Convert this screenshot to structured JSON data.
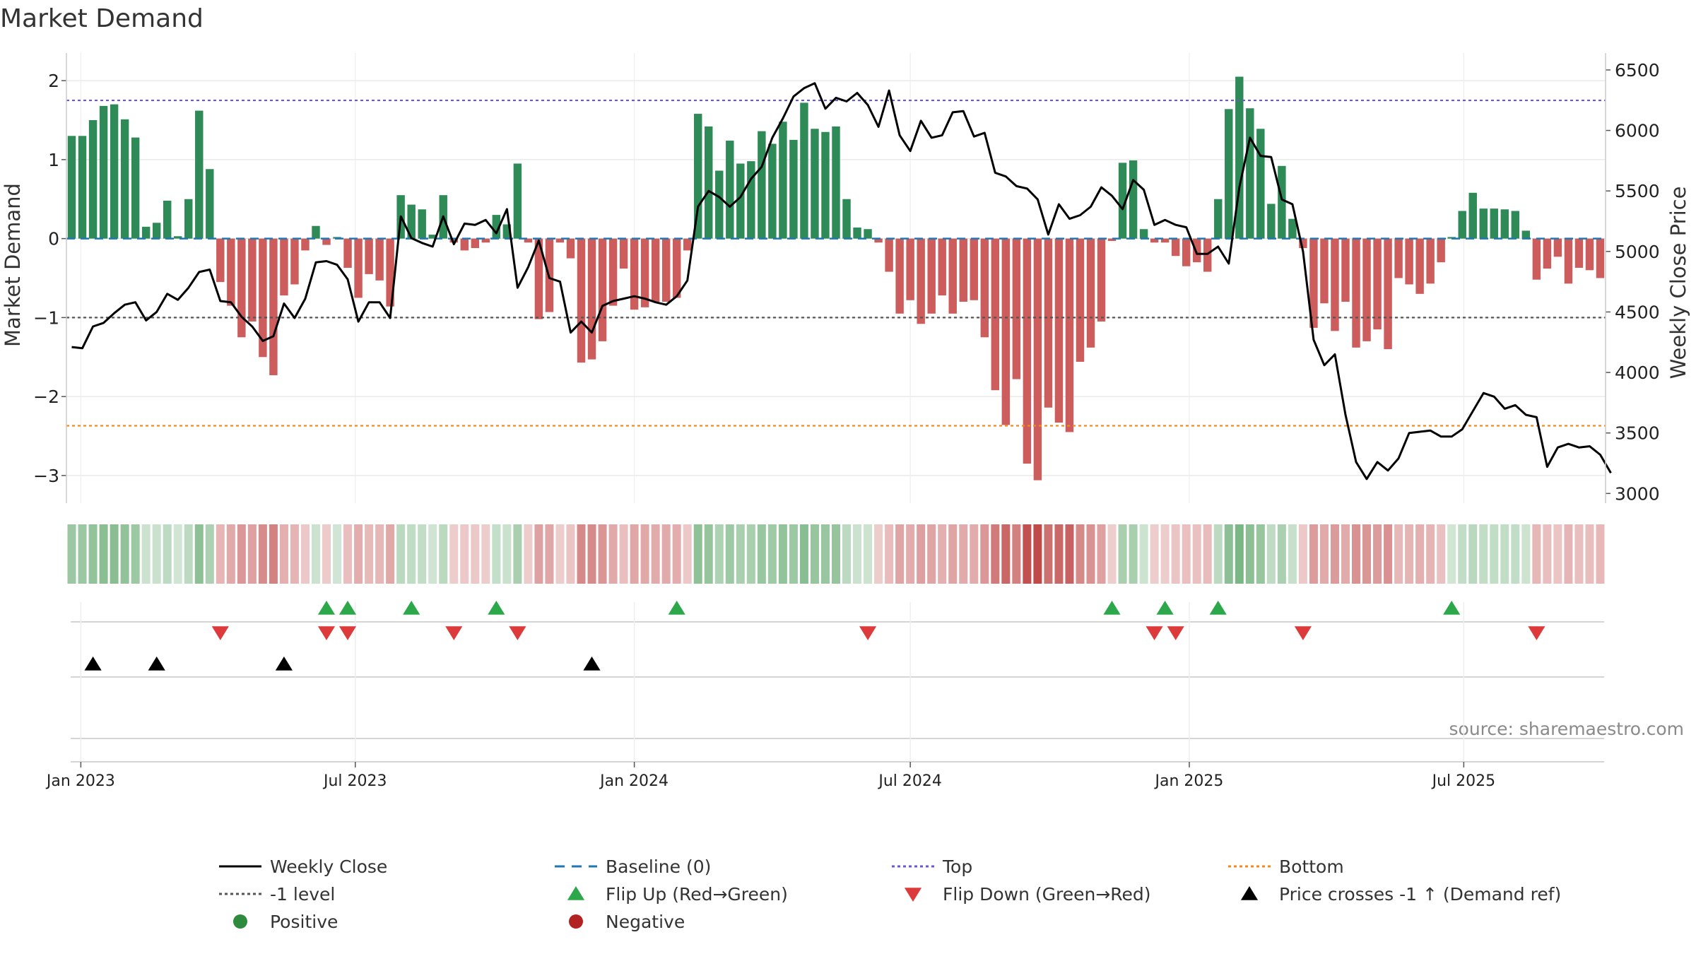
{
  "chart_data": {
    "type": "bar",
    "title": "Market Demand",
    "ylabel": "Market Demand",
    "y2label": "Weekly Close Price",
    "ylim": [
      -3.35,
      2.35
    ],
    "y2lim": [
      2920,
      6640
    ],
    "y_ticks": [
      "2",
      "1",
      "0",
      "−1",
      "−2",
      "−3"
    ],
    "y2_ticks": [
      "6500",
      "6000",
      "5500",
      "5000",
      "4500",
      "4000",
      "3500",
      "3000"
    ],
    "x_ticks": [
      "Jan 2023",
      "Jul 2023",
      "Jan 2024",
      "Jul 2024",
      "Jan 2025",
      "Jul 2025"
    ],
    "start_week": "2022-12-26",
    "demand": [
      1.3,
      1.3,
      1.5,
      1.68,
      1.7,
      1.51,
      1.28,
      0.15,
      0.2,
      0.48,
      0.03,
      0.5,
      1.62,
      0.88,
      -0.55,
      -0.85,
      -1.25,
      -1.05,
      -1.5,
      -1.73,
      -0.72,
      -0.58,
      -0.15,
      0.16,
      -0.08,
      0.02,
      -0.37,
      -0.75,
      -0.45,
      -0.53,
      -0.86,
      0.55,
      0.43,
      0.37,
      0.05,
      0.55,
      -0.05,
      -0.15,
      -0.12,
      -0.05,
      0.3,
      0.18,
      0.95,
      -0.05,
      -1.02,
      -0.93,
      -0.05,
      -0.25,
      -1.57,
      -1.53,
      -1.3,
      -0.85,
      -0.38,
      -0.9,
      -0.87,
      -0.8,
      -0.8,
      -0.75,
      -0.15,
      1.58,
      1.42,
      0.86,
      1.24,
      0.95,
      0.98,
      1.36,
      1.2,
      1.48,
      1.25,
      1.72,
      1.39,
      1.35,
      1.42,
      0.5,
      0.14,
      0.12,
      -0.05,
      -0.42,
      -0.95,
      -0.78,
      -1.08,
      -0.95,
      -0.72,
      -0.95,
      -0.8,
      -0.78,
      -1.25,
      -1.92,
      -2.36,
      -1.78,
      -2.85,
      -3.06,
      -2.14,
      -2.33,
      -2.45,
      -1.56,
      -1.38,
      -1.05,
      -0.03,
      0.96,
      0.99,
      0.12,
      -0.05,
      -0.05,
      -0.22,
      -0.35,
      -0.3,
      -0.42,
      0.5,
      1.64,
      2.05,
      1.65,
      1.39,
      0.44,
      0.92,
      0.25,
      -0.12,
      -1.13,
      -0.82,
      -1.17,
      -0.8,
      -1.38,
      -1.3,
      -1.15,
      -1.4,
      -0.5,
      -0.58,
      -0.7,
      -0.57,
      -0.3,
      0.02,
      0.35,
      0.58,
      0.38,
      0.38,
      0.37,
      0.35,
      0.1,
      -0.52,
      -0.38,
      -0.23,
      -0.57,
      -0.37,
      -0.4,
      -0.5
    ],
    "weekly_close": [
      4210,
      4200,
      4380,
      4410,
      4490,
      4560,
      4580,
      4430,
      4500,
      4650,
      4600,
      4700,
      4830,
      4850,
      4590,
      4580,
      4460,
      4380,
      4260,
      4300,
      4570,
      4450,
      4610,
      4910,
      4920,
      4890,
      4770,
      4420,
      4580,
      4580,
      4450,
      5290,
      5110,
      5070,
      5040,
      5290,
      5060,
      5230,
      5220,
      5260,
      5150,
      5350,
      4700,
      4870,
      5090,
      4780,
      4750,
      4330,
      4420,
      4330,
      4550,
      4590,
      4610,
      4630,
      4610,
      4580,
      4560,
      4630,
      4760,
      5370,
      5500,
      5450,
      5370,
      5450,
      5600,
      5700,
      5940,
      6100,
      6280,
      6350,
      6390,
      6180,
      6270,
      6240,
      6310,
      6210,
      6030,
      6330,
      5960,
      5830,
      6080,
      5940,
      5960,
      6150,
      6160,
      5950,
      5980,
      5650,
      5620,
      5540,
      5520,
      5430,
      5140,
      5390,
      5270,
      5300,
      5370,
      5530,
      5460,
      5350,
      5590,
      5510,
      5220,
      5260,
      5220,
      5200,
      4980,
      4980,
      5040,
      4900,
      5530,
      5940,
      5790,
      5780,
      5430,
      5390,
      5000,
      4270,
      4060,
      4150,
      3650,
      3260,
      3120,
      3260,
      3190,
      3290,
      3500,
      3510,
      3520,
      3470,
      3470,
      3530,
      3680,
      3830,
      3800,
      3700,
      3730,
      3650,
      3630,
      3220,
      3380,
      3410,
      3380,
      3390,
      3320,
      3170
    ],
    "tracks": {
      "flip_up_weeks": [
        24,
        26,
        32,
        40,
        57,
        98,
        103,
        108,
        130
      ],
      "flip_down_weeks": [
        14,
        24,
        26,
        36,
        42,
        75,
        102,
        104,
        116,
        138
      ],
      "price_cross_weeks": [
        2,
        8,
        20,
        49
      ]
    },
    "legend": [
      {
        "label": "Weekly Close",
        "marker": "line",
        "color": "#000000"
      },
      {
        "label": "Baseline (0)",
        "marker": "dash",
        "color": "#1f77b4"
      },
      {
        "label": "Top",
        "marker": "dot",
        "color": "#6a5acd"
      },
      {
        "label": "Bottom",
        "marker": "dot",
        "color": "#f28a22"
      },
      {
        "label": "-1 level",
        "marker": "dot",
        "color": "#555555"
      },
      {
        "label": "Flip Up (Red→Green)",
        "marker": "triangle-up",
        "color": "#2ca84a"
      },
      {
        "label": "Flip Down (Green→Red)",
        "marker": "triangle-down",
        "color": "#dd3b3b"
      },
      {
        "label": "Price crosses -1 ↑ (Demand ref)",
        "marker": "triangle-up",
        "color": "#000000"
      },
      {
        "label": "Positive",
        "marker": "circle",
        "color": "#2e8b3d"
      },
      {
        "label": "Negative",
        "marker": "circle",
        "color": "#b22222"
      }
    ],
    "source": "source: sharemaestro.com",
    "colors": {
      "positive": "#2e8b57",
      "negative": "#cd5c5c",
      "top": "#6a5acd",
      "bottom": "#f28a22",
      "minus_one": "#555555",
      "baseline": "#1f77b4",
      "close": "#000000"
    }
  }
}
